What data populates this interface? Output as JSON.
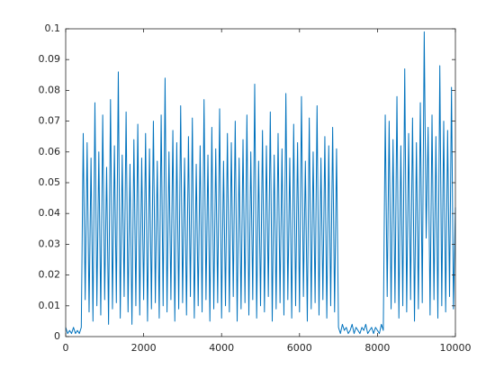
{
  "chart_data": {
    "type": "line",
    "color": "#0072bd",
    "xlim": [
      0,
      10000
    ],
    "xticks": [
      0,
      2000,
      4000,
      6000,
      8000,
      10000
    ],
    "ylim": [
      0,
      0.1
    ],
    "yticks": [
      0,
      0.01,
      0.02,
      0.03,
      0.04,
      0.05,
      0.06,
      0.07,
      0.08,
      0.09,
      0.1
    ],
    "x": [
      0,
      50,
      100,
      150,
      200,
      250,
      300,
      350,
      400,
      450,
      500,
      550,
      600,
      650,
      700,
      750,
      800,
      850,
      900,
      950,
      1000,
      1050,
      1100,
      1150,
      1200,
      1250,
      1300,
      1350,
      1400,
      1450,
      1500,
      1550,
      1600,
      1650,
      1700,
      1750,
      1800,
      1850,
      1900,
      1950,
      2000,
      2050,
      2100,
      2150,
      2200,
      2250,
      2300,
      2350,
      2400,
      2450,
      2500,
      2550,
      2600,
      2650,
      2700,
      2750,
      2800,
      2850,
      2900,
      2950,
      3000,
      3050,
      3100,
      3150,
      3200,
      3250,
      3300,
      3350,
      3400,
      3450,
      3500,
      3550,
      3600,
      3650,
      3700,
      3750,
      3800,
      3850,
      3900,
      3950,
      4000,
      4050,
      4100,
      4150,
      4200,
      4250,
      4300,
      4350,
      4400,
      4450,
      4500,
      4550,
      4600,
      4650,
      4700,
      4750,
      4800,
      4850,
      4900,
      4950,
      5000,
      5050,
      5100,
      5150,
      5200,
      5250,
      5300,
      5350,
      5400,
      5450,
      5500,
      5550,
      5600,
      5650,
      5700,
      5750,
      5800,
      5850,
      5900,
      5950,
      6000,
      6050,
      6100,
      6150,
      6200,
      6250,
      6300,
      6350,
      6400,
      6450,
      6500,
      6550,
      6600,
      6650,
      6700,
      6750,
      6800,
      6850,
      6900,
      6950,
      7000,
      7050,
      7100,
      7150,
      7200,
      7250,
      7300,
      7350,
      7400,
      7450,
      7500,
      7550,
      7600,
      7650,
      7700,
      7750,
      7800,
      7850,
      7900,
      7950,
      8000,
      8050,
      8100,
      8150,
      8200,
      8250,
      8300,
      8350,
      8400,
      8450,
      8500,
      8550,
      8600,
      8650,
      8700,
      8750,
      8800,
      8850,
      8900,
      8950,
      9000,
      9050,
      9100,
      9150,
      9200,
      9250,
      9300,
      9350,
      9400,
      9450,
      9500,
      9550,
      9600,
      9650,
      9700,
      9750,
      9800,
      9850,
      9900,
      9950,
      10000
    ],
    "values": [
      0.003,
      0.001,
      0.002,
      0.001,
      0.003,
      0.001,
      0.002,
      0.001,
      0.003,
      0.066,
      0.012,
      0.063,
      0.008,
      0.058,
      0.005,
      0.076,
      0.01,
      0.06,
      0.007,
      0.072,
      0.012,
      0.055,
      0.004,
      0.077,
      0.009,
      0.062,
      0.011,
      0.086,
      0.006,
      0.059,
      0.013,
      0.073,
      0.008,
      0.056,
      0.004,
      0.064,
      0.01,
      0.069,
      0.007,
      0.058,
      0.012,
      0.066,
      0.005,
      0.061,
      0.009,
      0.07,
      0.011,
      0.057,
      0.006,
      0.072,
      0.01,
      0.084,
      0.008,
      0.06,
      0.012,
      0.067,
      0.005,
      0.063,
      0.009,
      0.075,
      0.011,
      0.058,
      0.007,
      0.065,
      0.013,
      0.071,
      0.006,
      0.056,
      0.01,
      0.062,
      0.008,
      0.077,
      0.012,
      0.059,
      0.005,
      0.068,
      0.009,
      0.061,
      0.011,
      0.074,
      0.006,
      0.057,
      0.01,
      0.066,
      0.008,
      0.063,
      0.013,
      0.07,
      0.005,
      0.058,
      0.009,
      0.064,
      0.011,
      0.072,
      0.007,
      0.06,
      0.012,
      0.082,
      0.006,
      0.057,
      0.01,
      0.067,
      0.008,
      0.062,
      0.013,
      0.073,
      0.005,
      0.059,
      0.009,
      0.066,
      0.011,
      0.061,
      0.007,
      0.079,
      0.012,
      0.058,
      0.006,
      0.069,
      0.01,
      0.063,
      0.008,
      0.078,
      0.013,
      0.057,
      0.005,
      0.071,
      0.009,
      0.06,
      0.011,
      0.075,
      0.007,
      0.058,
      0.012,
      0.065,
      0.006,
      0.062,
      0.01,
      0.068,
      0.008,
      0.061,
      0.003,
      0.001,
      0.004,
      0.002,
      0.003,
      0.001,
      0.002,
      0.004,
      0.001,
      0.003,
      0.002,
      0.001,
      0.003,
      0.002,
      0.004,
      0.001,
      0.002,
      0.003,
      0.001,
      0.003,
      0.002,
      0.001,
      0.004,
      0.002,
      0.072,
      0.013,
      0.07,
      0.009,
      0.064,
      0.011,
      0.078,
      0.006,
      0.062,
      0.01,
      0.087,
      0.008,
      0.066,
      0.012,
      0.071,
      0.005,
      0.063,
      0.009,
      0.076,
      0.011,
      0.099,
      0.032,
      0.068,
      0.007,
      0.072,
      0.012,
      0.065,
      0.006,
      0.088,
      0.01,
      0.07,
      0.008,
      0.067,
      0.013,
      0.081,
      0.009,
      0.042
    ]
  }
}
